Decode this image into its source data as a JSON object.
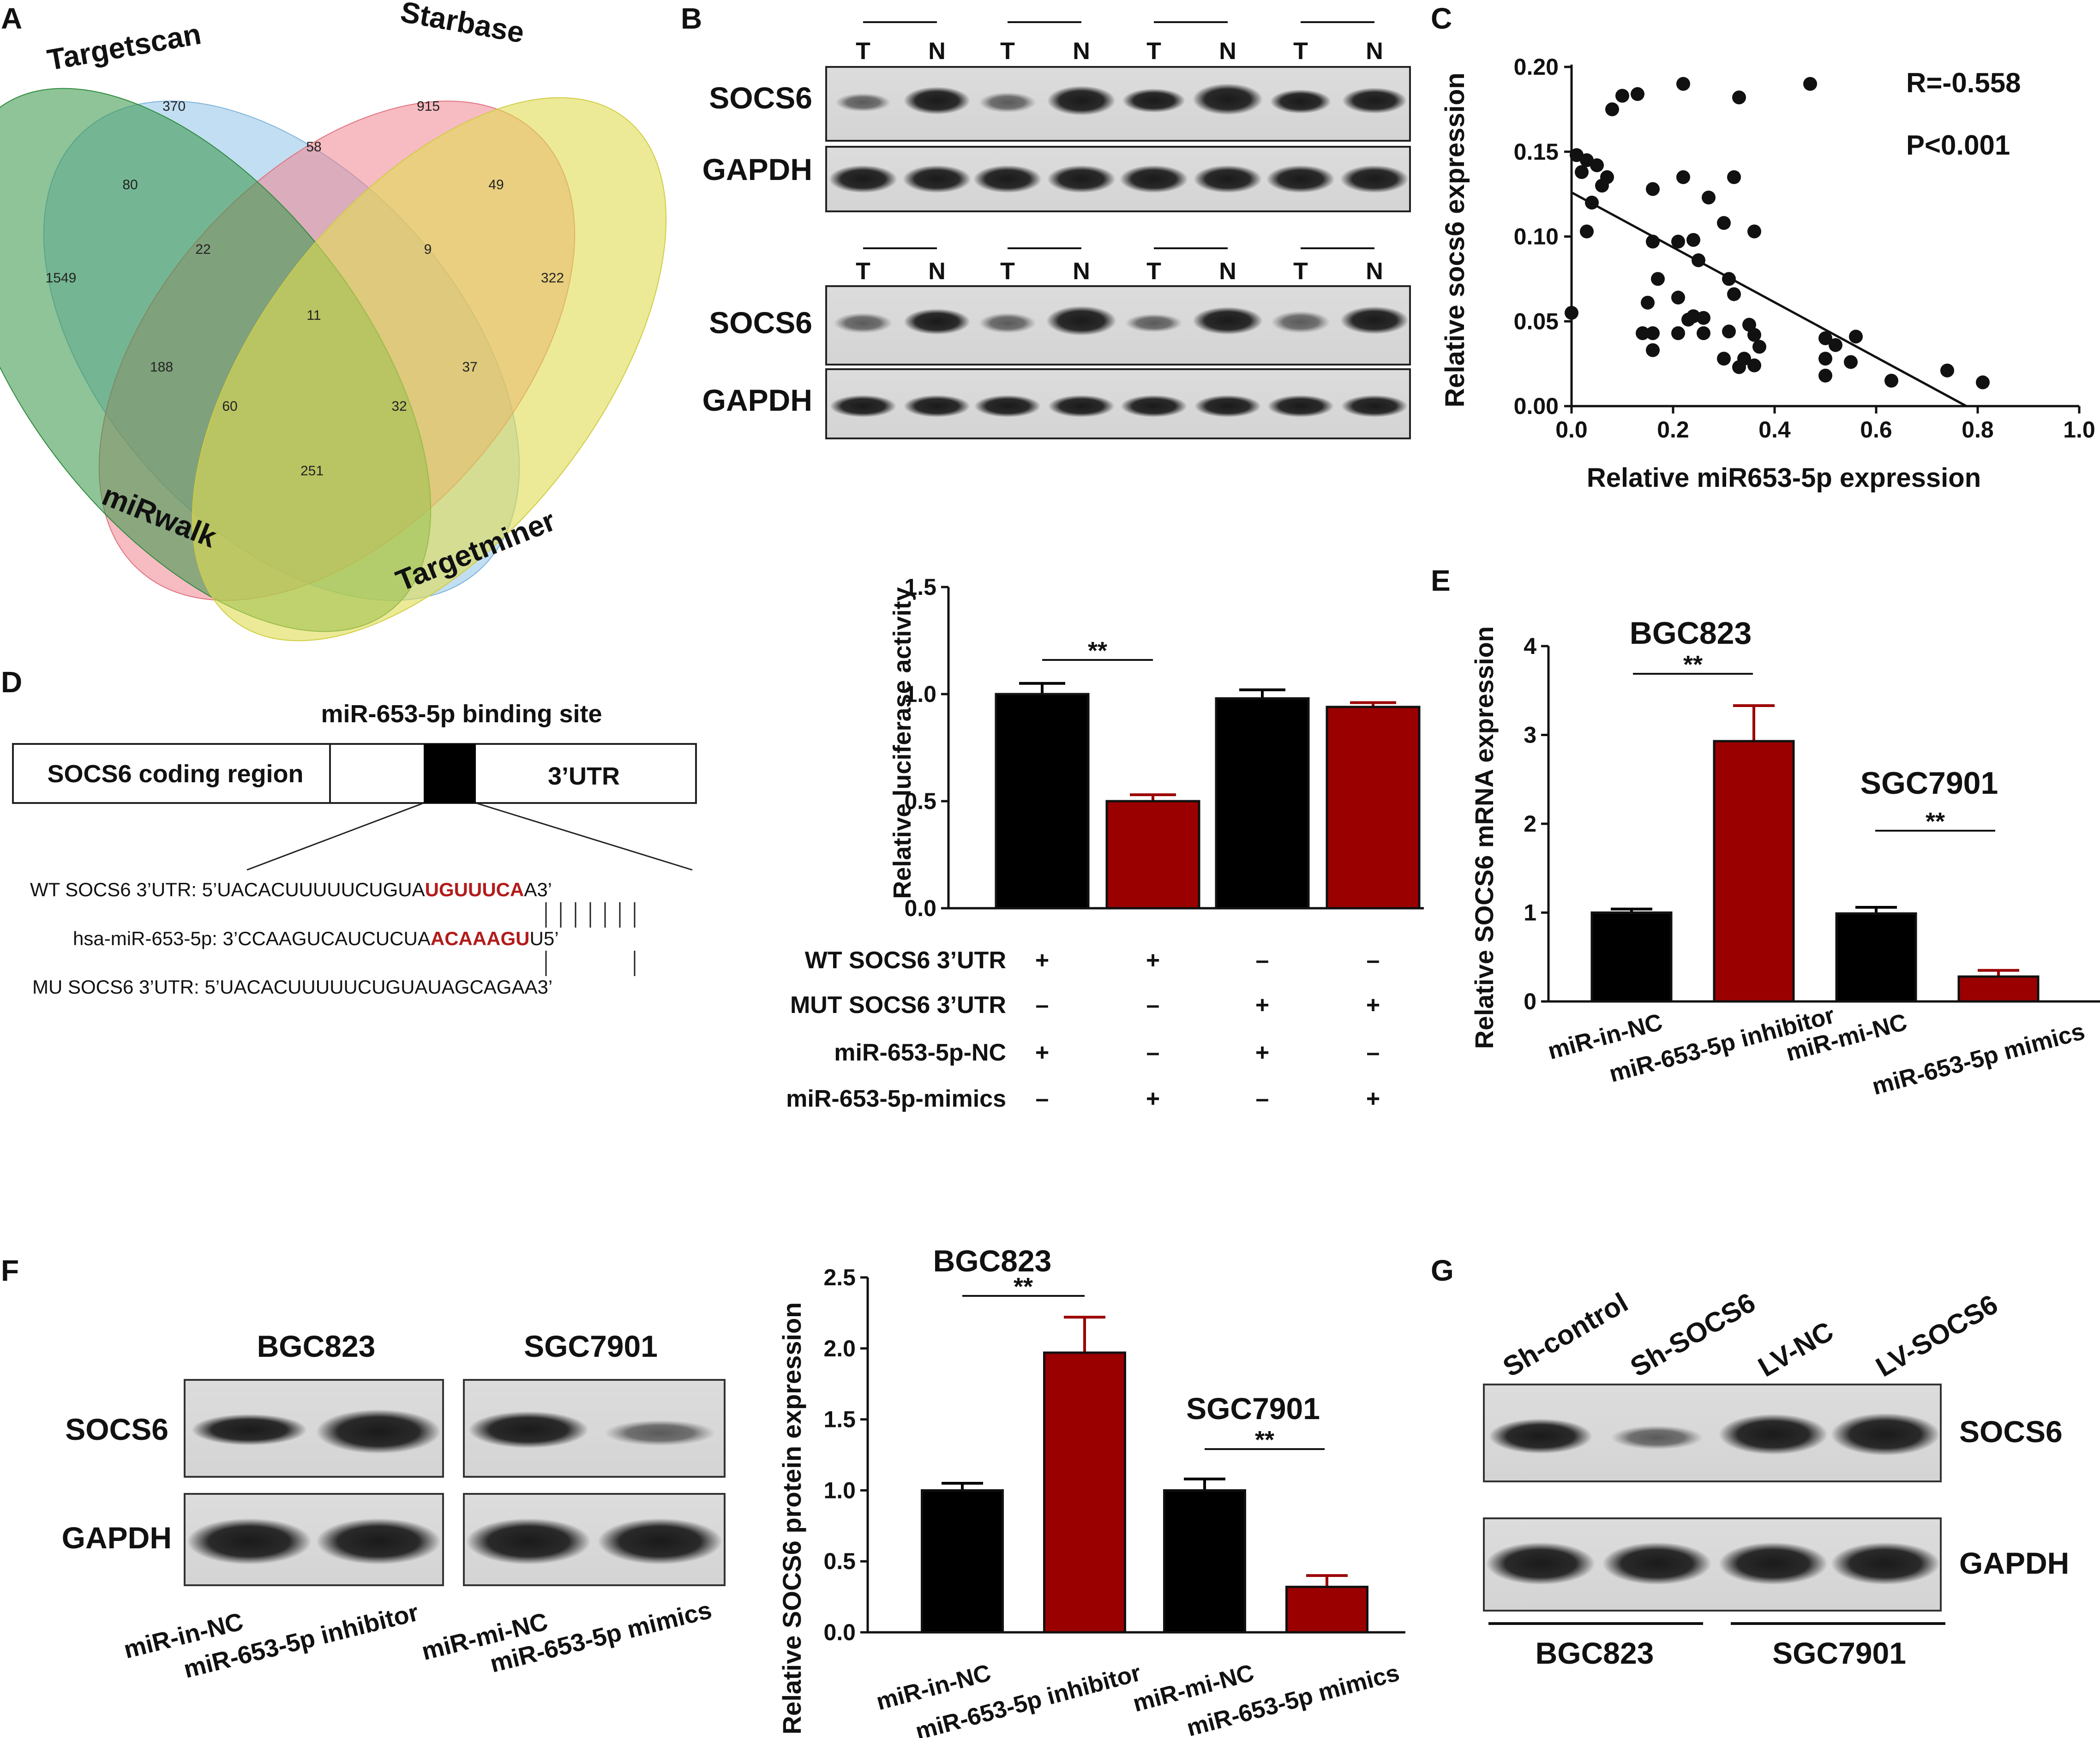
{
  "panel_labels": {
    "a": "A",
    "b": "B",
    "c": "C",
    "d": "D",
    "e": "E",
    "f": "F",
    "g": "G"
  },
  "colors": {
    "targetscan": "#8fc3e8",
    "starbase": "#f0838f",
    "targetminer": "#e0dc52",
    "mirwalk": "#3d9a4d",
    "black_bar": "#000000",
    "red_bar": "#9b0000",
    "highlight": "#b31b1b"
  },
  "venn": {
    "sets": [
      "Targetscan",
      "Starbase",
      "miRwalk",
      "Targetminer"
    ],
    "counts": [
      "370",
      "915",
      "80",
      "58",
      "49",
      "1549",
      "22",
      "9",
      "322",
      "11",
      "188",
      "37",
      "60",
      "32",
      "251"
    ]
  },
  "panel_b": {
    "lanes": [
      "T",
      "N",
      "T",
      "N",
      "T",
      "N",
      "T",
      "N"
    ],
    "blots": [
      {
        "top_label": "SOCS6",
        "bottom_label": "GAPDH"
      },
      {
        "top_label": "SOCS6",
        "bottom_label": "GAPDH"
      }
    ]
  },
  "panel_c": {
    "annotation_r": "R=-0.558",
    "annotation_p": "P<0.001",
    "chart_data": {
      "type": "scatter",
      "xlabel": "Relative miR653-5p expression",
      "ylabel": "Relative socs6 expression",
      "xlim": [
        0.0,
        1.0
      ],
      "ylim": [
        0.0,
        0.2
      ],
      "xticks": [
        "0.0",
        "0.2",
        "0.4",
        "0.6",
        "0.8",
        "1.0"
      ],
      "yticks": [
        "0.00",
        "0.05",
        "0.10",
        "0.15",
        "0.20"
      ],
      "points": [
        [
          0.01,
          0.148
        ],
        [
          0.03,
          0.145
        ],
        [
          0.05,
          0.142
        ],
        [
          0.07,
          0.135
        ],
        [
          0.02,
          0.138
        ],
        [
          0.04,
          0.12
        ],
        [
          0.06,
          0.13
        ],
        [
          0.08,
          0.175
        ],
        [
          0.1,
          0.183
        ],
        [
          0.13,
          0.184
        ],
        [
          0.22,
          0.19
        ],
        [
          0.33,
          0.182
        ],
        [
          0.47,
          0.19
        ],
        [
          0.03,
          0.103
        ],
        [
          0.0,
          0.055
        ],
        [
          0.16,
          0.128
        ],
        [
          0.21,
          0.097
        ],
        [
          0.24,
          0.098
        ],
        [
          0.22,
          0.135
        ],
        [
          0.27,
          0.123
        ],
        [
          0.32,
          0.135
        ],
        [
          0.3,
          0.108
        ],
        [
          0.36,
          0.103
        ],
        [
          0.25,
          0.086
        ],
        [
          0.16,
          0.097
        ],
        [
          0.17,
          0.075
        ],
        [
          0.31,
          0.075
        ],
        [
          0.32,
          0.066
        ],
        [
          0.21,
          0.064
        ],
        [
          0.23,
          0.051
        ],
        [
          0.24,
          0.053
        ],
        [
          0.15,
          0.061
        ],
        [
          0.16,
          0.043
        ],
        [
          0.14,
          0.043
        ],
        [
          0.16,
          0.033
        ],
        [
          0.21,
          0.043
        ],
        [
          0.26,
          0.052
        ],
        [
          0.26,
          0.043
        ],
        [
          0.31,
          0.044
        ],
        [
          0.33,
          0.023
        ],
        [
          0.3,
          0.028
        ],
        [
          0.35,
          0.048
        ],
        [
          0.36,
          0.042
        ],
        [
          0.36,
          0.024
        ],
        [
          0.37,
          0.035
        ],
        [
          0.5,
          0.04
        ],
        [
          0.52,
          0.036
        ],
        [
          0.5,
          0.028
        ],
        [
          0.56,
          0.041
        ],
        [
          0.5,
          0.018
        ],
        [
          0.55,
          0.026
        ],
        [
          0.63,
          0.015
        ],
        [
          0.74,
          0.021
        ],
        [
          0.81,
          0.014
        ],
        [
          0.34,
          0.028
        ]
      ],
      "trendline": {
        "slope": -0.162,
        "intercept": 0.126
      }
    }
  },
  "panel_d": {
    "binding_site_label": "miR-653-5p binding site",
    "coding_region": "SOCS6 coding region",
    "utr_label": "3’UTR",
    "wt_label": "WT SOCS6 3’UTR: 5’UACACUUUUUCUGUA",
    "wt_highlight": "UGUUUCA",
    "wt_end": "A3’",
    "mir_label": "hsa-miR-653-5p: 3’CCAAGUCAUCUCUA",
    "mir_highlight": "ACAAAGU",
    "mir_end": "U5’",
    "mu_label": "MU SOCS6 3’UTR: 5’UACACUUUUUCUGUAUAGCAGAA3’",
    "luciferase": {
      "sig": "**",
      "conditions": [
        {
          "name": "WT SOCS6 3’UTR",
          "marks": [
            "+",
            "+",
            "–",
            "–"
          ]
        },
        {
          "name": "MUT SOCS6 3’UTR",
          "marks": [
            "–",
            "–",
            "+",
            "+"
          ]
        },
        {
          "name": "miR-653-5p-NC",
          "marks": [
            "+",
            "–",
            "+",
            "–"
          ]
        },
        {
          "name": "miR-653-5p-mimics",
          "marks": [
            "–",
            "+",
            "–",
            "+"
          ]
        }
      ],
      "chart_data": {
        "type": "bar",
        "ylabel": "Relative luciferase activity",
        "ylim": [
          0.0,
          1.5
        ],
        "yticks": [
          "0.0",
          "0.5",
          "1.0",
          "1.5"
        ],
        "values": [
          1.0,
          0.5,
          0.98,
          0.94
        ],
        "errors": [
          0.05,
          0.03,
          0.04,
          0.02
        ],
        "colors": [
          "black",
          "red",
          "black",
          "red"
        ]
      }
    }
  },
  "panel_e": {
    "group1": "BGC823",
    "group2": "SGC7901",
    "sig1": "**",
    "sig2": "**",
    "chart_data": {
      "type": "bar",
      "ylabel": "Relative SOCS6 mRNA expression",
      "ylim": [
        0,
        4
      ],
      "yticks": [
        "0",
        "1",
        "2",
        "3",
        "4"
      ],
      "categories": [
        "miR-in-NC",
        "miR-653-5p inhibitor",
        "miR-mi-NC",
        "miR-653-5p mimics"
      ],
      "values": [
        1.0,
        2.93,
        0.99,
        0.28
      ],
      "errors": [
        0.04,
        0.4,
        0.07,
        0.07
      ],
      "colors": [
        "black",
        "red",
        "black",
        "red"
      ]
    }
  },
  "panel_f_blot": {
    "group1": "BGC823",
    "group2": "SGC7901",
    "top_label": "SOCS6",
    "bottom_label": "GAPDH",
    "lane_labels": [
      "miR-in-NC",
      "miR-653-5p inhibitor",
      "miR-mi-NC",
      "miR-653-5p mimics"
    ]
  },
  "panel_f_chart": {
    "group1": "BGC823",
    "group2": "SGC7901",
    "sig1": "**",
    "sig2": "**",
    "chart_data": {
      "type": "bar",
      "ylabel": "Relative SOCS6 protein expression",
      "ylim": [
        0.0,
        2.5
      ],
      "yticks": [
        "0.0",
        "0.5",
        "1.0",
        "1.5",
        "2.0",
        "2.5"
      ],
      "categories": [
        "miR-in-NC",
        "miR-653-5p inhibitor",
        "miR-mi-NC",
        "miR-653-5p mimics"
      ],
      "values": [
        1.0,
        1.97,
        1.0,
        0.32
      ],
      "errors": [
        0.05,
        0.25,
        0.08,
        0.08
      ],
      "colors": [
        "black",
        "red",
        "black",
        "red"
      ]
    }
  },
  "panel_g": {
    "lanes": [
      "Sh-control",
      "Sh-SOCS6",
      "LV-NC",
      "LV-SOCS6"
    ],
    "top_label": "SOCS6",
    "bottom_label": "GAPDH",
    "group1": "BGC823",
    "group2": "SGC7901"
  }
}
